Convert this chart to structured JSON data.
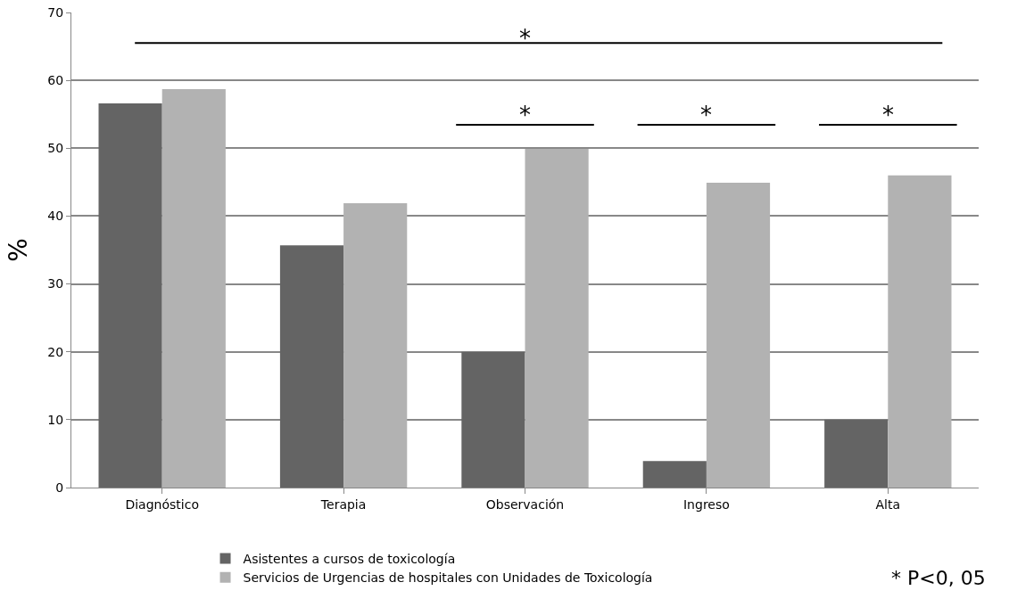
{
  "chart_data": {
    "type": "bar",
    "ylabel": "%",
    "categories": [
      "Diagnóstico",
      "Terapia",
      "Observación",
      "Ingreso",
      "Alta"
    ],
    "series": [
      {
        "name": "Asistentes a cursos de toxicología",
        "color": "#646464",
        "values": [
          56.6,
          35.7,
          20,
          3.9,
          10
        ]
      },
      {
        "name": "Servicios de Urgencias de hospitales con Unidades de Toxicología",
        "color": "#b2b2b2",
        "values": [
          58.7,
          41.9,
          49.9,
          44.9,
          46
        ]
      }
    ],
    "ylim": [
      0,
      70
    ],
    "yticks": [
      0,
      10,
      20,
      30,
      40,
      50,
      60,
      70
    ],
    "grid": "y",
    "legend": "bottom",
    "ref_lines": [
      {
        "axis": "y",
        "value": 65.5,
        "label": "*",
        "color": "#000000"
      }
    ],
    "annotations": [
      "* P<0, 05",
      "*",
      "*",
      "*"
    ]
  }
}
